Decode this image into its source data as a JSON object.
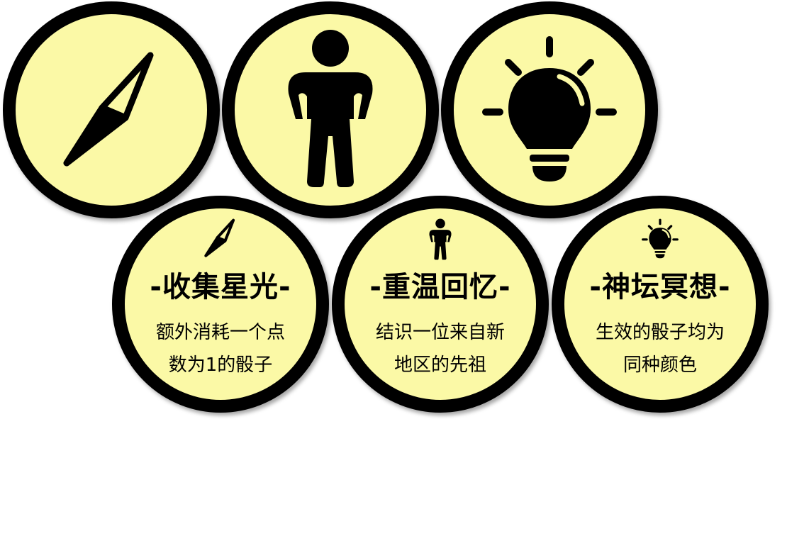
{
  "colors": {
    "token_fill": "#fbf9a6",
    "token_ring": "#000000",
    "icon": "#000000"
  },
  "icon_tokens": [
    {
      "icon": "compass-icon"
    },
    {
      "icon": "person-icon"
    },
    {
      "icon": "lightbulb-icon"
    }
  ],
  "cards": [
    {
      "icon": "compass-icon",
      "title": "-收集星光-",
      "desc_line1": "额外消耗一个点",
      "desc_line2": "数为1的骰子"
    },
    {
      "icon": "person-icon",
      "title": "-重温回忆-",
      "desc_line1": "结识一位来自新",
      "desc_line2": "地区的先祖"
    },
    {
      "icon": "lightbulb-icon",
      "title": "-神坛冥想-",
      "desc_line1": "生效的骰子均为",
      "desc_line2": "同种颜色"
    }
  ]
}
